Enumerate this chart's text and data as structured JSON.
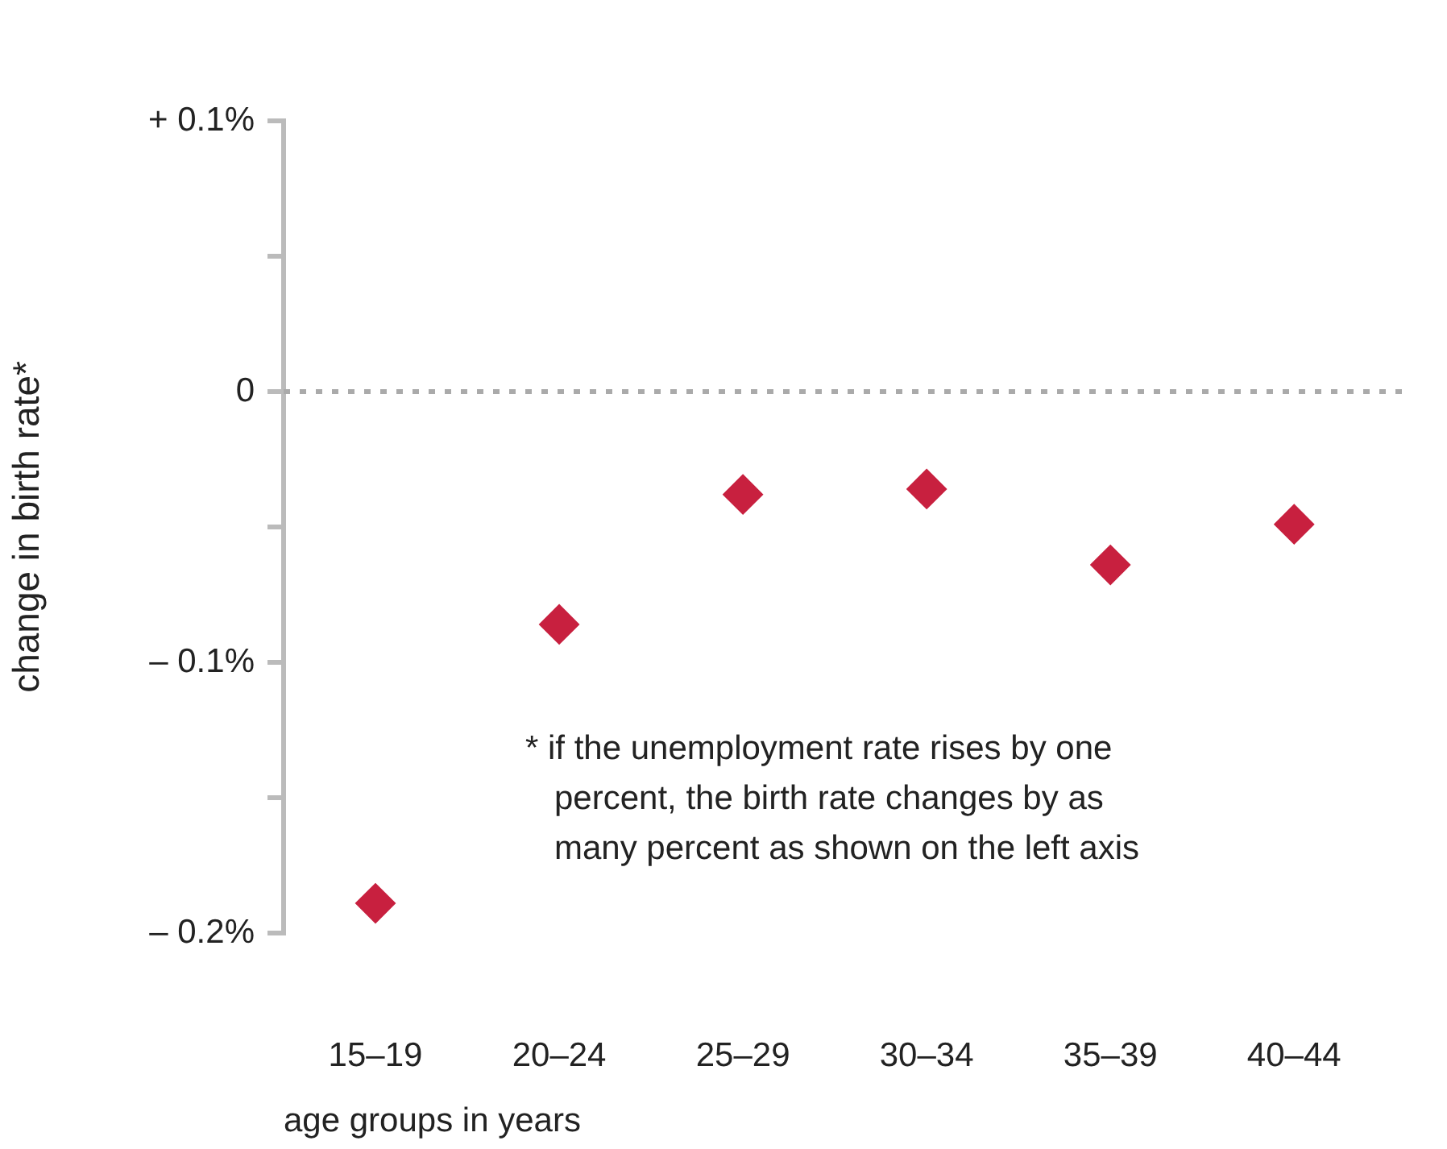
{
  "chart_data": {
    "type": "scatter",
    "xlabel": "age groups in years",
    "ylabel": "change in birth rate*",
    "categories": [
      "15–19",
      "20–24",
      "25–29",
      "30–34",
      "35–39",
      "40–44"
    ],
    "series": [
      {
        "color": "#c8203f",
        "values": [
          -0.189,
          -0.086,
          -0.038,
          -0.036,
          -0.064,
          -0.049
        ]
      }
    ],
    "marker": "diamond",
    "ylim": [
      -0.2,
      0.1
    ],
    "yticks": [
      {
        "value": -0.2,
        "label": "– 0.2%"
      },
      {
        "value": -0.15,
        "label": null
      },
      {
        "value": -0.1,
        "label": "– 0.1%"
      },
      {
        "value": -0.05,
        "label": null
      },
      0,
      {
        "value": 0.05,
        "label": null
      },
      {
        "value": 0.1,
        "label": "+ 0.1%"
      }
    ],
    "ref_lines": [
      {
        "axis": "y",
        "value": 0,
        "color": "#aaaaaa",
        "line_style": "dotted"
      }
    ],
    "annotations": [
      "* if the unemployment rate rises by one\npercent, the birth rate changes by as\nmany percent as shown on the left axis"
    ],
    "grid": false,
    "legend": false
  }
}
